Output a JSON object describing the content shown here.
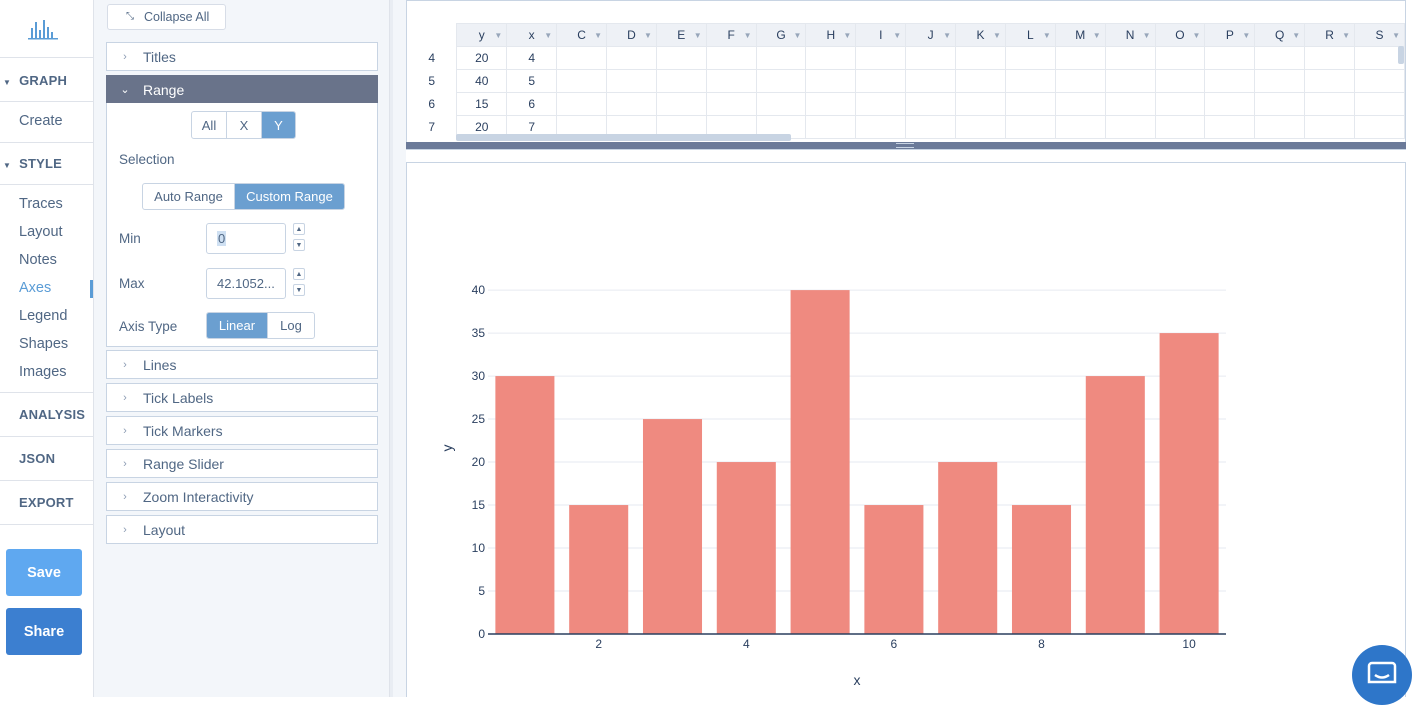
{
  "nav": {
    "graph": "GRAPH",
    "create": "Create",
    "style": "STYLE",
    "items": [
      "Traces",
      "Layout",
      "Notes",
      "Axes",
      "Legend",
      "Shapes",
      "Images"
    ],
    "analysis": "ANALYSIS",
    "json": "JSON",
    "export": "EXPORT",
    "save": "Save",
    "share": "Share"
  },
  "panel": {
    "collapse_all": "Collapse All",
    "folds_top": [
      "Titles"
    ],
    "range_title": "Range",
    "axis_toggle": [
      "All",
      "X",
      "Y"
    ],
    "selection_label": "Selection",
    "range_modes": [
      "Auto Range",
      "Custom Range"
    ],
    "min_label": "Min",
    "min_value": "0",
    "max_label": "Max",
    "max_value": "42.1052...",
    "axis_type_label": "Axis Type",
    "axis_types": [
      "Linear",
      "Log"
    ],
    "folds_bottom": [
      "Lines",
      "Tick Labels",
      "Tick Markers",
      "Range Slider",
      "Zoom Interactivity",
      "Layout"
    ]
  },
  "grid": {
    "columns": [
      "y",
      "x",
      "C",
      "D",
      "E",
      "F",
      "G",
      "H",
      "I",
      "J",
      "K",
      "L",
      "M",
      "N",
      "O",
      "P",
      "Q",
      "R",
      "S"
    ],
    "rows": [
      {
        "num": "4",
        "y": "20",
        "x": "4"
      },
      {
        "num": "5",
        "y": "40",
        "x": "5"
      },
      {
        "num": "6",
        "y": "15",
        "x": "6"
      },
      {
        "num": "7",
        "y": "20",
        "x": "7"
      }
    ]
  },
  "chart_data": {
    "type": "bar",
    "x": [
      1,
      2,
      3,
      4,
      5,
      6,
      7,
      8,
      9,
      10
    ],
    "values": [
      30,
      15,
      25,
      20,
      40,
      15,
      20,
      15,
      30,
      35
    ],
    "xlabel": "x",
    "ylabel": "y",
    "ylim": [
      0,
      42.1052
    ],
    "xticks": [
      "2",
      "4",
      "6",
      "8",
      "10"
    ],
    "yticks": [
      "0",
      "5",
      "10",
      "15",
      "20",
      "25",
      "30",
      "35",
      "40"
    ],
    "bar_color": "#ef8a80",
    "grid": true
  },
  "colors": {
    "accent": "#6b9fd0",
    "save": "#5fa8f0",
    "share": "#3c7fd0",
    "fold_open": "#69738a"
  }
}
